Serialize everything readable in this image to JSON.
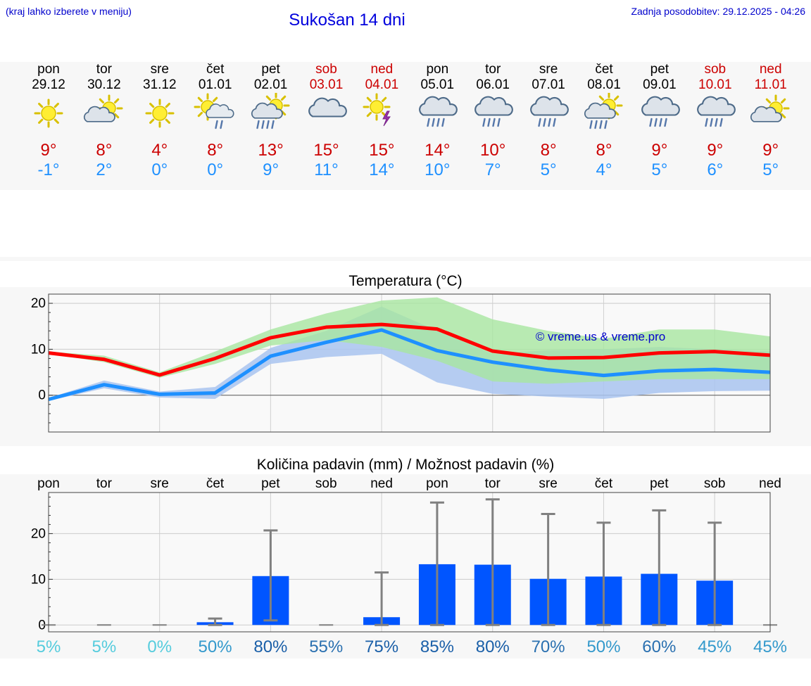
{
  "header": {
    "location_hint": "(kraj lahko izberete v meniju)",
    "title": "Sukošan 14 dni",
    "updated": "Zadnja posodobitev: 29.12.2025 - 04:26"
  },
  "days": [
    {
      "name": "pon",
      "date": "29.12",
      "weekend": false,
      "icon": "sunny-icon",
      "max": "9°",
      "min": "-1°"
    },
    {
      "name": "tor",
      "date": "30.12",
      "weekend": false,
      "icon": "partly-cloudy-icon",
      "max": "8°",
      "min": "2°"
    },
    {
      "name": "sre",
      "date": "31.12",
      "weekend": false,
      "icon": "sunny-icon",
      "max": "4°",
      "min": "0°"
    },
    {
      "name": "čet",
      "date": "01.01",
      "weekend": false,
      "icon": "sun-cloud-rain-icon",
      "max": "8°",
      "min": "0°"
    },
    {
      "name": "pet",
      "date": "02.01",
      "weekend": false,
      "icon": "sun-cloud-heavy-rain-icon",
      "max": "13°",
      "min": "9°"
    },
    {
      "name": "sob",
      "date": "03.01",
      "weekend": true,
      "icon": "cloudy-icon",
      "max": "15°",
      "min": "11°"
    },
    {
      "name": "ned",
      "date": "04.01",
      "weekend": true,
      "icon": "sun-thunder-icon",
      "max": "15°",
      "min": "14°"
    },
    {
      "name": "pon",
      "date": "05.01",
      "weekend": false,
      "icon": "cloud-rain-icon",
      "max": "14°",
      "min": "10°"
    },
    {
      "name": "tor",
      "date": "06.01",
      "weekend": false,
      "icon": "cloud-rain-icon",
      "max": "10°",
      "min": "7°"
    },
    {
      "name": "sre",
      "date": "07.01",
      "weekend": false,
      "icon": "cloud-rain-icon",
      "max": "8°",
      "min": "5°"
    },
    {
      "name": "čet",
      "date": "08.01",
      "weekend": false,
      "icon": "sun-cloud-heavy-rain-icon",
      "max": "8°",
      "min": "4°"
    },
    {
      "name": "pet",
      "date": "09.01",
      "weekend": false,
      "icon": "cloud-rain-icon",
      "max": "9°",
      "min": "5°"
    },
    {
      "name": "sob",
      "date": "10.01",
      "weekend": true,
      "icon": "cloud-rain-icon",
      "max": "9°",
      "min": "6°"
    },
    {
      "name": "ned",
      "date": "11.01",
      "weekend": true,
      "icon": "partly-cloudy-icon",
      "max": "9°",
      "min": "5°"
    }
  ],
  "chart_data": [
    {
      "type": "line",
      "title": "Temperatura (°C)",
      "watermark": "© vreme.us & vreme.pro",
      "ylim": [
        -8,
        22
      ],
      "yticks": [
        0,
        10,
        20
      ],
      "grid": true,
      "x": [
        0,
        1,
        2,
        3,
        4,
        5,
        6,
        7,
        8,
        9,
        10,
        11,
        12,
        13
      ],
      "series": [
        {
          "name": "max",
          "color": "#ff0000",
          "values": [
            9.2,
            7.8,
            4.4,
            8.0,
            12.5,
            14.8,
            15.4,
            14.4,
            9.6,
            8.1,
            8.2,
            9.2,
            9.5,
            8.7
          ]
        },
        {
          "name": "min",
          "color": "#1e90ff",
          "values": [
            -0.9,
            2.3,
            0.2,
            0.5,
            8.5,
            11.5,
            14.2,
            9.7,
            7.2,
            5.5,
            4.3,
            5.3,
            5.6,
            5.0
          ]
        }
      ],
      "max_band": {
        "color": "#a8e6a0",
        "low": [
          9.0,
          7.2,
          3.8,
          6.8,
          10.8,
          12.0,
          10.5,
          7.5,
          3.0,
          2.5,
          3.0,
          3.5,
          3.5,
          3.5
        ],
        "high": [
          9.5,
          8.6,
          5.0,
          9.5,
          14.3,
          17.8,
          20.6,
          21.3,
          16.5,
          14.0,
          12.3,
          14.3,
          14.3,
          12.8
        ]
      },
      "min_band": {
        "color": "#a9c4f0",
        "low": [
          -1.2,
          1.5,
          -0.5,
          -0.8,
          6.8,
          8.3,
          9.0,
          2.8,
          0.3,
          -0.3,
          -0.8,
          0.5,
          0.9,
          1.0
        ],
        "high": [
          -0.6,
          3.2,
          0.8,
          1.8,
          10.3,
          14.0,
          19.3,
          14.0,
          9.0,
          9.8,
          10.0,
          10.5,
          10.0,
          9.5
        ]
      }
    },
    {
      "type": "bar",
      "title": "Količina padavin (mm) / Možnost padavin (%)",
      "ylim": [
        -1.5,
        29
      ],
      "yticks": [
        0,
        10,
        20
      ],
      "grid": true,
      "categories": [
        "pon",
        "tor",
        "sre",
        "čet",
        "pet",
        "sob",
        "ned",
        "pon",
        "tor",
        "sre",
        "čet",
        "pet",
        "sob",
        "ned"
      ],
      "values": [
        0,
        0,
        0,
        0.6,
        10.7,
        0,
        1.7,
        13.3,
        13.2,
        10.1,
        10.6,
        11.2,
        9.7,
        0
      ],
      "error_low": [
        0,
        0,
        0,
        0,
        1.0,
        0,
        0,
        0,
        0,
        0,
        0,
        0,
        0,
        0
      ],
      "error_high": [
        0,
        0,
        0,
        1.4,
        20.7,
        0,
        11.5,
        26.8,
        27.5,
        24.3,
        22.4,
        25.1,
        22.4,
        0
      ],
      "bar_color": "#0055ff",
      "error_color": "#808080",
      "probabilities": [
        "5%",
        "5%",
        "0%",
        "50%",
        "80%",
        "55%",
        "75%",
        "85%",
        "80%",
        "70%",
        "50%",
        "60%",
        "45%",
        "45%"
      ],
      "probability_colors": [
        "#55ccdd",
        "#55ccdd",
        "#55ccdd",
        "#3399cc",
        "#1a5fa8",
        "#2a70b0",
        "#1a5fa8",
        "#1a5fa8",
        "#1a5fa8",
        "#2a70b0",
        "#3399cc",
        "#2a70b0",
        "#3399cc",
        "#3399cc"
      ]
    }
  ]
}
